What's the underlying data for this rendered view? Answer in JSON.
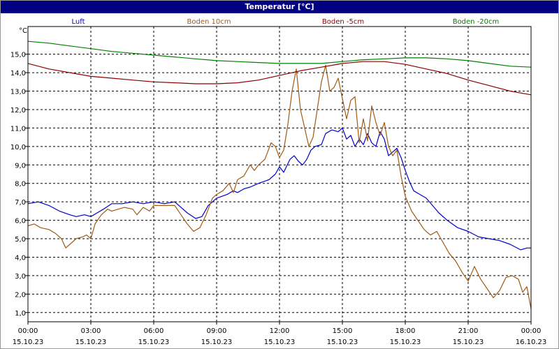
{
  "window": {
    "title": "Temperatur [°C]"
  },
  "chart_data": {
    "type": "line",
    "title": "Temperatur [°C]",
    "ylabel": "°C",
    "xlabel": "",
    "x_unit": "hours",
    "xlim": [
      0,
      24
    ],
    "ylim": [
      0.5,
      16.5
    ],
    "grid": true,
    "legend_position": "top",
    "x_ticks": [
      {
        "x": 0,
        "time": "00:00",
        "date": "15.10.23"
      },
      {
        "x": 3,
        "time": "03:00",
        "date": "15.10.23"
      },
      {
        "x": 6,
        "time": "06:00",
        "date": "15.10.23"
      },
      {
        "x": 9,
        "time": "09:00",
        "date": "15.10.23"
      },
      {
        "x": 12,
        "time": "12:00",
        "date": "15.10.23"
      },
      {
        "x": 15,
        "time": "15:00",
        "date": "15.10.23"
      },
      {
        "x": 18,
        "time": "18:00",
        "date": "15.10.23"
      },
      {
        "x": 21,
        "time": "21:00",
        "date": "15.10.23"
      },
      {
        "x": 24,
        "time": "00:00",
        "date": "16.10.23"
      }
    ],
    "y_ticks": [
      {
        "v": 1,
        "label": "1,0"
      },
      {
        "v": 2,
        "label": "2,0"
      },
      {
        "v": 3,
        "label": "3,0"
      },
      {
        "v": 4,
        "label": "4,0"
      },
      {
        "v": 5,
        "label": "5,0"
      },
      {
        "v": 6,
        "label": "6,0"
      },
      {
        "v": 7,
        "label": "7,0"
      },
      {
        "v": 8,
        "label": "8,0"
      },
      {
        "v": 9,
        "label": "9,0"
      },
      {
        "v": 10,
        "label": "10,0"
      },
      {
        "v": 11,
        "label": "11,0"
      },
      {
        "v": 12,
        "label": "12,0"
      },
      {
        "v": 13,
        "label": "13,0"
      },
      {
        "v": 14,
        "label": "14,0"
      },
      {
        "v": 15,
        "label": "15,0"
      }
    ],
    "series": [
      {
        "name": "Luft",
        "color": "#0000cc",
        "points": [
          [
            0.0,
            6.9
          ],
          [
            0.5,
            7.0
          ],
          [
            1.0,
            6.8
          ],
          [
            1.5,
            6.5
          ],
          [
            2.0,
            6.3
          ],
          [
            2.3,
            6.2
          ],
          [
            2.7,
            6.3
          ],
          [
            3.0,
            6.2
          ],
          [
            3.3,
            6.4
          ],
          [
            3.6,
            6.6
          ],
          [
            4.0,
            6.9
          ],
          [
            4.5,
            6.9
          ],
          [
            5.0,
            7.0
          ],
          [
            5.5,
            6.9
          ],
          [
            6.0,
            7.0
          ],
          [
            6.5,
            6.9
          ],
          [
            7.0,
            7.0
          ],
          [
            7.3,
            6.7
          ],
          [
            7.6,
            6.4
          ],
          [
            8.0,
            6.1
          ],
          [
            8.3,
            6.2
          ],
          [
            8.6,
            6.8
          ],
          [
            9.0,
            7.2
          ],
          [
            9.5,
            7.4
          ],
          [
            9.8,
            7.6
          ],
          [
            10.0,
            7.5
          ],
          [
            10.3,
            7.7
          ],
          [
            10.6,
            7.8
          ],
          [
            11.0,
            8.0
          ],
          [
            11.5,
            8.2
          ],
          [
            11.8,
            8.5
          ],
          [
            12.0,
            8.9
          ],
          [
            12.2,
            8.6
          ],
          [
            12.5,
            9.3
          ],
          [
            12.7,
            9.5
          ],
          [
            12.9,
            9.2
          ],
          [
            13.1,
            9.0
          ],
          [
            13.3,
            9.3
          ],
          [
            13.5,
            9.8
          ],
          [
            13.7,
            10.0
          ],
          [
            14.0,
            10.1
          ],
          [
            14.2,
            10.7
          ],
          [
            14.5,
            10.9
          ],
          [
            14.8,
            10.8
          ],
          [
            15.0,
            11.0
          ],
          [
            15.2,
            10.4
          ],
          [
            15.4,
            10.6
          ],
          [
            15.6,
            10.0
          ],
          [
            15.8,
            10.4
          ],
          [
            16.0,
            10.1
          ],
          [
            16.2,
            10.7
          ],
          [
            16.4,
            10.2
          ],
          [
            16.6,
            10.0
          ],
          [
            16.8,
            10.8
          ],
          [
            17.0,
            10.4
          ],
          [
            17.2,
            9.5
          ],
          [
            17.4,
            9.7
          ],
          [
            17.6,
            9.9
          ],
          [
            17.8,
            9.4
          ],
          [
            18.0,
            8.7
          ],
          [
            18.2,
            8.1
          ],
          [
            18.4,
            7.6
          ],
          [
            18.7,
            7.4
          ],
          [
            19.0,
            7.2
          ],
          [
            19.3,
            6.8
          ],
          [
            19.6,
            6.4
          ],
          [
            20.0,
            6.0
          ],
          [
            20.5,
            5.6
          ],
          [
            21.0,
            5.4
          ],
          [
            21.5,
            5.1
          ],
          [
            22.0,
            5.0
          ],
          [
            22.5,
            4.9
          ],
          [
            23.0,
            4.7
          ],
          [
            23.5,
            4.4
          ],
          [
            23.8,
            4.5
          ],
          [
            24.0,
            4.5
          ]
        ]
      },
      {
        "name": "Boden 10cm",
        "color": "#a05a14",
        "points": [
          [
            0.0,
            5.7
          ],
          [
            0.3,
            5.8
          ],
          [
            0.6,
            5.6
          ],
          [
            1.0,
            5.5
          ],
          [
            1.3,
            5.3
          ],
          [
            1.6,
            5.0
          ],
          [
            1.8,
            4.5
          ],
          [
            2.0,
            4.7
          ],
          [
            2.3,
            5.0
          ],
          [
            2.6,
            5.1
          ],
          [
            2.8,
            5.2
          ],
          [
            3.0,
            5.0
          ],
          [
            3.2,
            5.8
          ],
          [
            3.5,
            6.3
          ],
          [
            3.8,
            6.6
          ],
          [
            4.0,
            6.5
          ],
          [
            4.3,
            6.6
          ],
          [
            4.6,
            6.7
          ],
          [
            5.0,
            6.6
          ],
          [
            5.2,
            6.3
          ],
          [
            5.5,
            6.7
          ],
          [
            5.8,
            6.5
          ],
          [
            6.0,
            6.8
          ],
          [
            6.5,
            6.8
          ],
          [
            7.0,
            6.8
          ],
          [
            7.3,
            6.3
          ],
          [
            7.6,
            5.8
          ],
          [
            7.9,
            5.4
          ],
          [
            8.2,
            5.6
          ],
          [
            8.5,
            6.3
          ],
          [
            8.8,
            7.2
          ],
          [
            9.0,
            7.4
          ],
          [
            9.3,
            7.6
          ],
          [
            9.6,
            8.0
          ],
          [
            9.8,
            7.5
          ],
          [
            10.0,
            8.2
          ],
          [
            10.3,
            8.4
          ],
          [
            10.6,
            9.0
          ],
          [
            10.8,
            8.7
          ],
          [
            11.0,
            9.0
          ],
          [
            11.3,
            9.3
          ],
          [
            11.6,
            10.2
          ],
          [
            11.8,
            10.0
          ],
          [
            12.0,
            9.4
          ],
          [
            12.2,
            9.8
          ],
          [
            12.4,
            11.2
          ],
          [
            12.6,
            13.0
          ],
          [
            12.8,
            14.2
          ],
          [
            13.0,
            12.0
          ],
          [
            13.2,
            11.0
          ],
          [
            13.4,
            10.0
          ],
          [
            13.6,
            10.5
          ],
          [
            13.8,
            12.0
          ],
          [
            14.0,
            13.5
          ],
          [
            14.2,
            14.4
          ],
          [
            14.4,
            13.0
          ],
          [
            14.6,
            13.2
          ],
          [
            14.8,
            13.7
          ],
          [
            15.0,
            12.6
          ],
          [
            15.2,
            11.5
          ],
          [
            15.4,
            12.5
          ],
          [
            15.6,
            12.7
          ],
          [
            15.8,
            10.2
          ],
          [
            16.0,
            11.5
          ],
          [
            16.2,
            10.3
          ],
          [
            16.4,
            12.2
          ],
          [
            16.6,
            11.3
          ],
          [
            16.8,
            10.6
          ],
          [
            17.0,
            11.3
          ],
          [
            17.2,
            10.0
          ],
          [
            17.4,
            9.5
          ],
          [
            17.6,
            9.8
          ],
          [
            17.8,
            8.4
          ],
          [
            18.0,
            7.3
          ],
          [
            18.3,
            6.5
          ],
          [
            18.6,
            6.0
          ],
          [
            18.9,
            5.5
          ],
          [
            19.2,
            5.2
          ],
          [
            19.5,
            5.4
          ],
          [
            19.8,
            4.8
          ],
          [
            20.1,
            4.2
          ],
          [
            20.4,
            3.8
          ],
          [
            20.7,
            3.2
          ],
          [
            21.0,
            2.7
          ],
          [
            21.3,
            3.5
          ],
          [
            21.6,
            2.8
          ],
          [
            21.9,
            2.3
          ],
          [
            22.2,
            1.8
          ],
          [
            22.5,
            2.2
          ],
          [
            22.8,
            2.9
          ],
          [
            23.1,
            3.0
          ],
          [
            23.4,
            2.8
          ],
          [
            23.6,
            2.1
          ],
          [
            23.8,
            2.4
          ],
          [
            24.0,
            1.2
          ]
        ]
      },
      {
        "name": "Boden -5cm",
        "color": "#8b0000",
        "points": [
          [
            0.0,
            14.5
          ],
          [
            1.0,
            14.2
          ],
          [
            2.0,
            14.0
          ],
          [
            3.0,
            13.8
          ],
          [
            4.0,
            13.7
          ],
          [
            5.0,
            13.6
          ],
          [
            6.0,
            13.5
          ],
          [
            7.0,
            13.45
          ],
          [
            8.0,
            13.4
          ],
          [
            9.0,
            13.4
          ],
          [
            10.0,
            13.45
          ],
          [
            11.0,
            13.6
          ],
          [
            12.0,
            13.85
          ],
          [
            13.0,
            14.1
          ],
          [
            14.0,
            14.3
          ],
          [
            15.0,
            14.5
          ],
          [
            16.0,
            14.6
          ],
          [
            17.0,
            14.6
          ],
          [
            18.0,
            14.45
          ],
          [
            19.0,
            14.2
          ],
          [
            20.0,
            13.95
          ],
          [
            21.0,
            13.6
          ],
          [
            22.0,
            13.3
          ],
          [
            23.0,
            13.0
          ],
          [
            24.0,
            12.8
          ]
        ]
      },
      {
        "name": "Boden -20cm",
        "color": "#008000",
        "points": [
          [
            0.0,
            15.7
          ],
          [
            1.0,
            15.6
          ],
          [
            2.0,
            15.45
          ],
          [
            3.0,
            15.3
          ],
          [
            4.0,
            15.15
          ],
          [
            5.0,
            15.05
          ],
          [
            6.0,
            14.95
          ],
          [
            7.0,
            14.85
          ],
          [
            8.0,
            14.75
          ],
          [
            9.0,
            14.65
          ],
          [
            10.0,
            14.6
          ],
          [
            11.0,
            14.55
          ],
          [
            12.0,
            14.5
          ],
          [
            13.0,
            14.5
          ],
          [
            14.0,
            14.5
          ],
          [
            15.0,
            14.6
          ],
          [
            16.0,
            14.7
          ],
          [
            17.0,
            14.75
          ],
          [
            18.0,
            14.8
          ],
          [
            19.0,
            14.8
          ],
          [
            20.0,
            14.75
          ],
          [
            21.0,
            14.65
          ],
          [
            22.0,
            14.5
          ],
          [
            23.0,
            14.35
          ],
          [
            24.0,
            14.3
          ]
        ]
      }
    ]
  }
}
